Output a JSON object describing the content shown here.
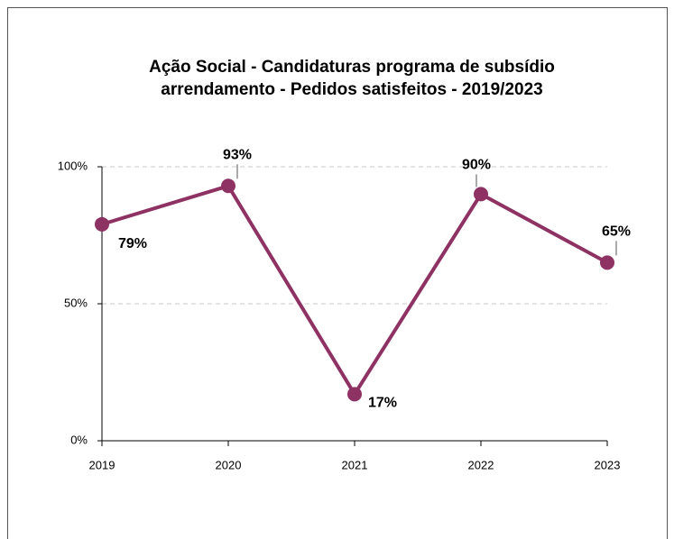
{
  "chart_data": {
    "type": "line",
    "title": [
      "Ação Social - Candidaturas programa de subsídio",
      "arrendamento - Pedidos satisfeitos - 2019/2023"
    ],
    "categories": [
      "2019",
      "2020",
      "2021",
      "2022",
      "2023"
    ],
    "series": [
      {
        "name": "Pedidos satisfeitos",
        "color": "#8e3163",
        "values": [
          79,
          93,
          17,
          90,
          65
        ],
        "value_labels": [
          "79%",
          "93%",
          "17%",
          "90%",
          "65%"
        ]
      }
    ],
    "ylim": [
      0,
      100
    ],
    "yticks": [
      {
        "value": 0,
        "label": "0%"
      },
      {
        "value": 50,
        "label": "50%"
      },
      {
        "value": 100,
        "label": "100%"
      }
    ],
    "grid": true
  }
}
